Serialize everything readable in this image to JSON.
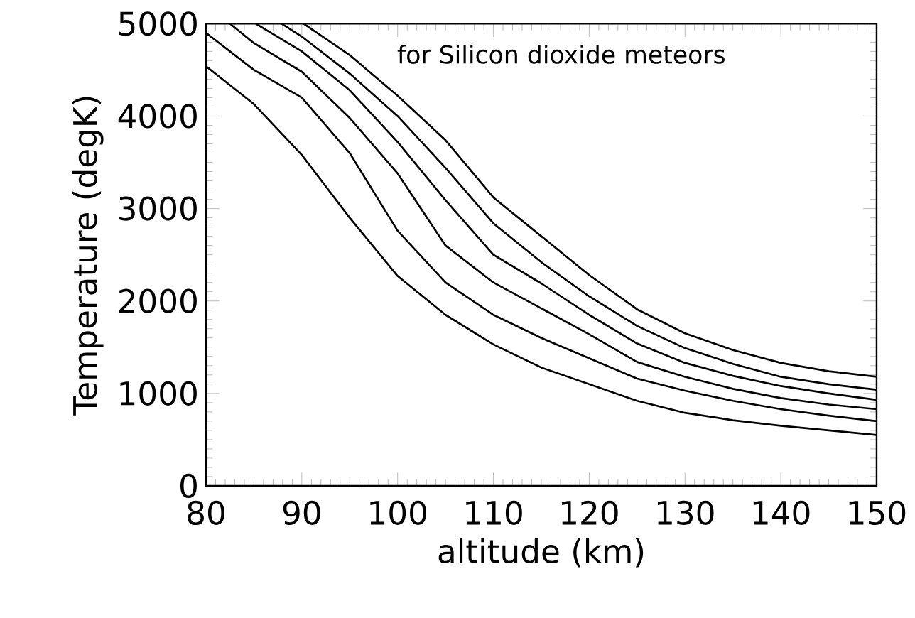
{
  "chart_data": {
    "type": "line",
    "xlabel": "altitude (km)",
    "ylabel": "Temperature (degK)",
    "annotations": [
      "for Silicon dioxide meteors"
    ],
    "xlim": [
      80,
      150
    ],
    "ylim": [
      0,
      5000
    ],
    "xticks": [
      80,
      90,
      100,
      110,
      120,
      130,
      140,
      150
    ],
    "yticks": [
      0,
      1000,
      2000,
      3000,
      4000,
      5000
    ],
    "grid": false,
    "marker": "none",
    "line_style": "solid",
    "series": [
      {
        "color": "#000000",
        "x": [
          80,
          85,
          90,
          95,
          100,
          105,
          110,
          115,
          120,
          125,
          130,
          135,
          140,
          145,
          150
        ],
        "values": [
          4540,
          4130,
          3580,
          2900,
          2270,
          1850,
          1530,
          1280,
          1100,
          920,
          790,
          710,
          650,
          600,
          550
        ]
      },
      {
        "color": "#000000",
        "x": [
          80,
          85,
          90,
          95,
          100,
          105,
          110,
          115,
          120,
          125,
          130,
          135,
          140,
          145,
          150
        ],
        "values": [
          4900,
          4500,
          4200,
          3600,
          2760,
          2200,
          1850,
          1600,
          1380,
          1160,
          1030,
          920,
          830,
          760,
          700
        ]
      },
      {
        "color": "#000000",
        "x": [
          82.5,
          85,
          90,
          95,
          100,
          105,
          110,
          115,
          120,
          125,
          130,
          135,
          140,
          145,
          150
        ],
        "values": [
          5000,
          4790,
          4480,
          3980,
          3380,
          2600,
          2200,
          1920,
          1640,
          1340,
          1180,
          1050,
          950,
          880,
          830
        ]
      },
      {
        "color": "#000000",
        "x": [
          85.2,
          90,
          95,
          100,
          105,
          110,
          115,
          120,
          125,
          130,
          135,
          140,
          145,
          150
        ],
        "values": [
          5000,
          4700,
          4280,
          3720,
          3090,
          2500,
          2190,
          1850,
          1540,
          1330,
          1190,
          1080,
          1000,
          930
        ]
      },
      {
        "color": "#000000",
        "x": [
          87.9,
          90,
          95,
          100,
          105,
          110,
          115,
          120,
          125,
          130,
          135,
          140,
          145,
          150
        ],
        "values": [
          5000,
          4860,
          4460,
          4000,
          3440,
          2840,
          2420,
          2050,
          1730,
          1490,
          1320,
          1180,
          1100,
          1040
        ]
      },
      {
        "color": "#000000",
        "x": [
          90.2,
          95,
          100,
          105,
          110,
          115,
          120,
          125,
          130,
          135,
          140,
          145,
          150
        ],
        "values": [
          5000,
          4660,
          4220,
          3740,
          3120,
          2700,
          2280,
          1910,
          1650,
          1470,
          1330,
          1240,
          1180
        ]
      }
    ]
  }
}
